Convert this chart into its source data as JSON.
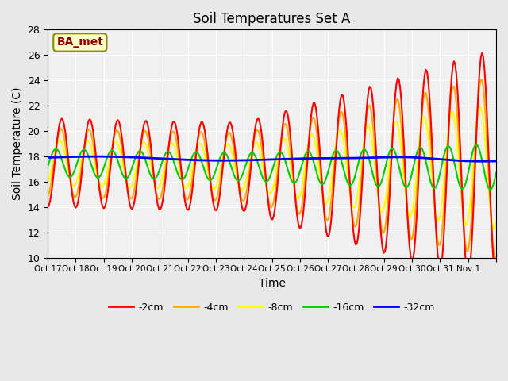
{
  "title": "Soil Temperatures Set A",
  "xlabel": "Time",
  "ylabel": "Soil Temperature (C)",
  "ylim": [
    10,
    28
  ],
  "xlim": [
    0,
    16
  ],
  "annotation": "BA_met",
  "series_labels": [
    "-2cm",
    "-4cm",
    "-8cm",
    "-16cm",
    "-32cm"
  ],
  "series_colors": [
    "#ff0000",
    "#ffaa00",
    "#ffff00",
    "#00cc00",
    "#0000ff"
  ],
  "xtick_positions": [
    0,
    1,
    2,
    3,
    4,
    5,
    6,
    7,
    8,
    9,
    10,
    11,
    12,
    13,
    14,
    15,
    16
  ],
  "xtick_labels": [
    "Oct 17",
    "Oct 18",
    "Oct 19",
    "Oct 20",
    "Oct 21",
    "Oct 22",
    "Oct 23",
    "Oct 24",
    "Oct 25",
    "Oct 26",
    "Oct 27",
    "Oct 28",
    "Oct 29",
    "Oct 30",
    "Oct 31",
    "Nov 1",
    ""
  ],
  "ytick_positions": [
    10,
    12,
    14,
    16,
    18,
    20,
    22,
    24,
    26,
    28
  ],
  "background_color": "#e8e8e8",
  "plot_bg_color": "#f0f0f0",
  "grid_color": "#ffffff",
  "n_days": 16,
  "n_points": 384
}
